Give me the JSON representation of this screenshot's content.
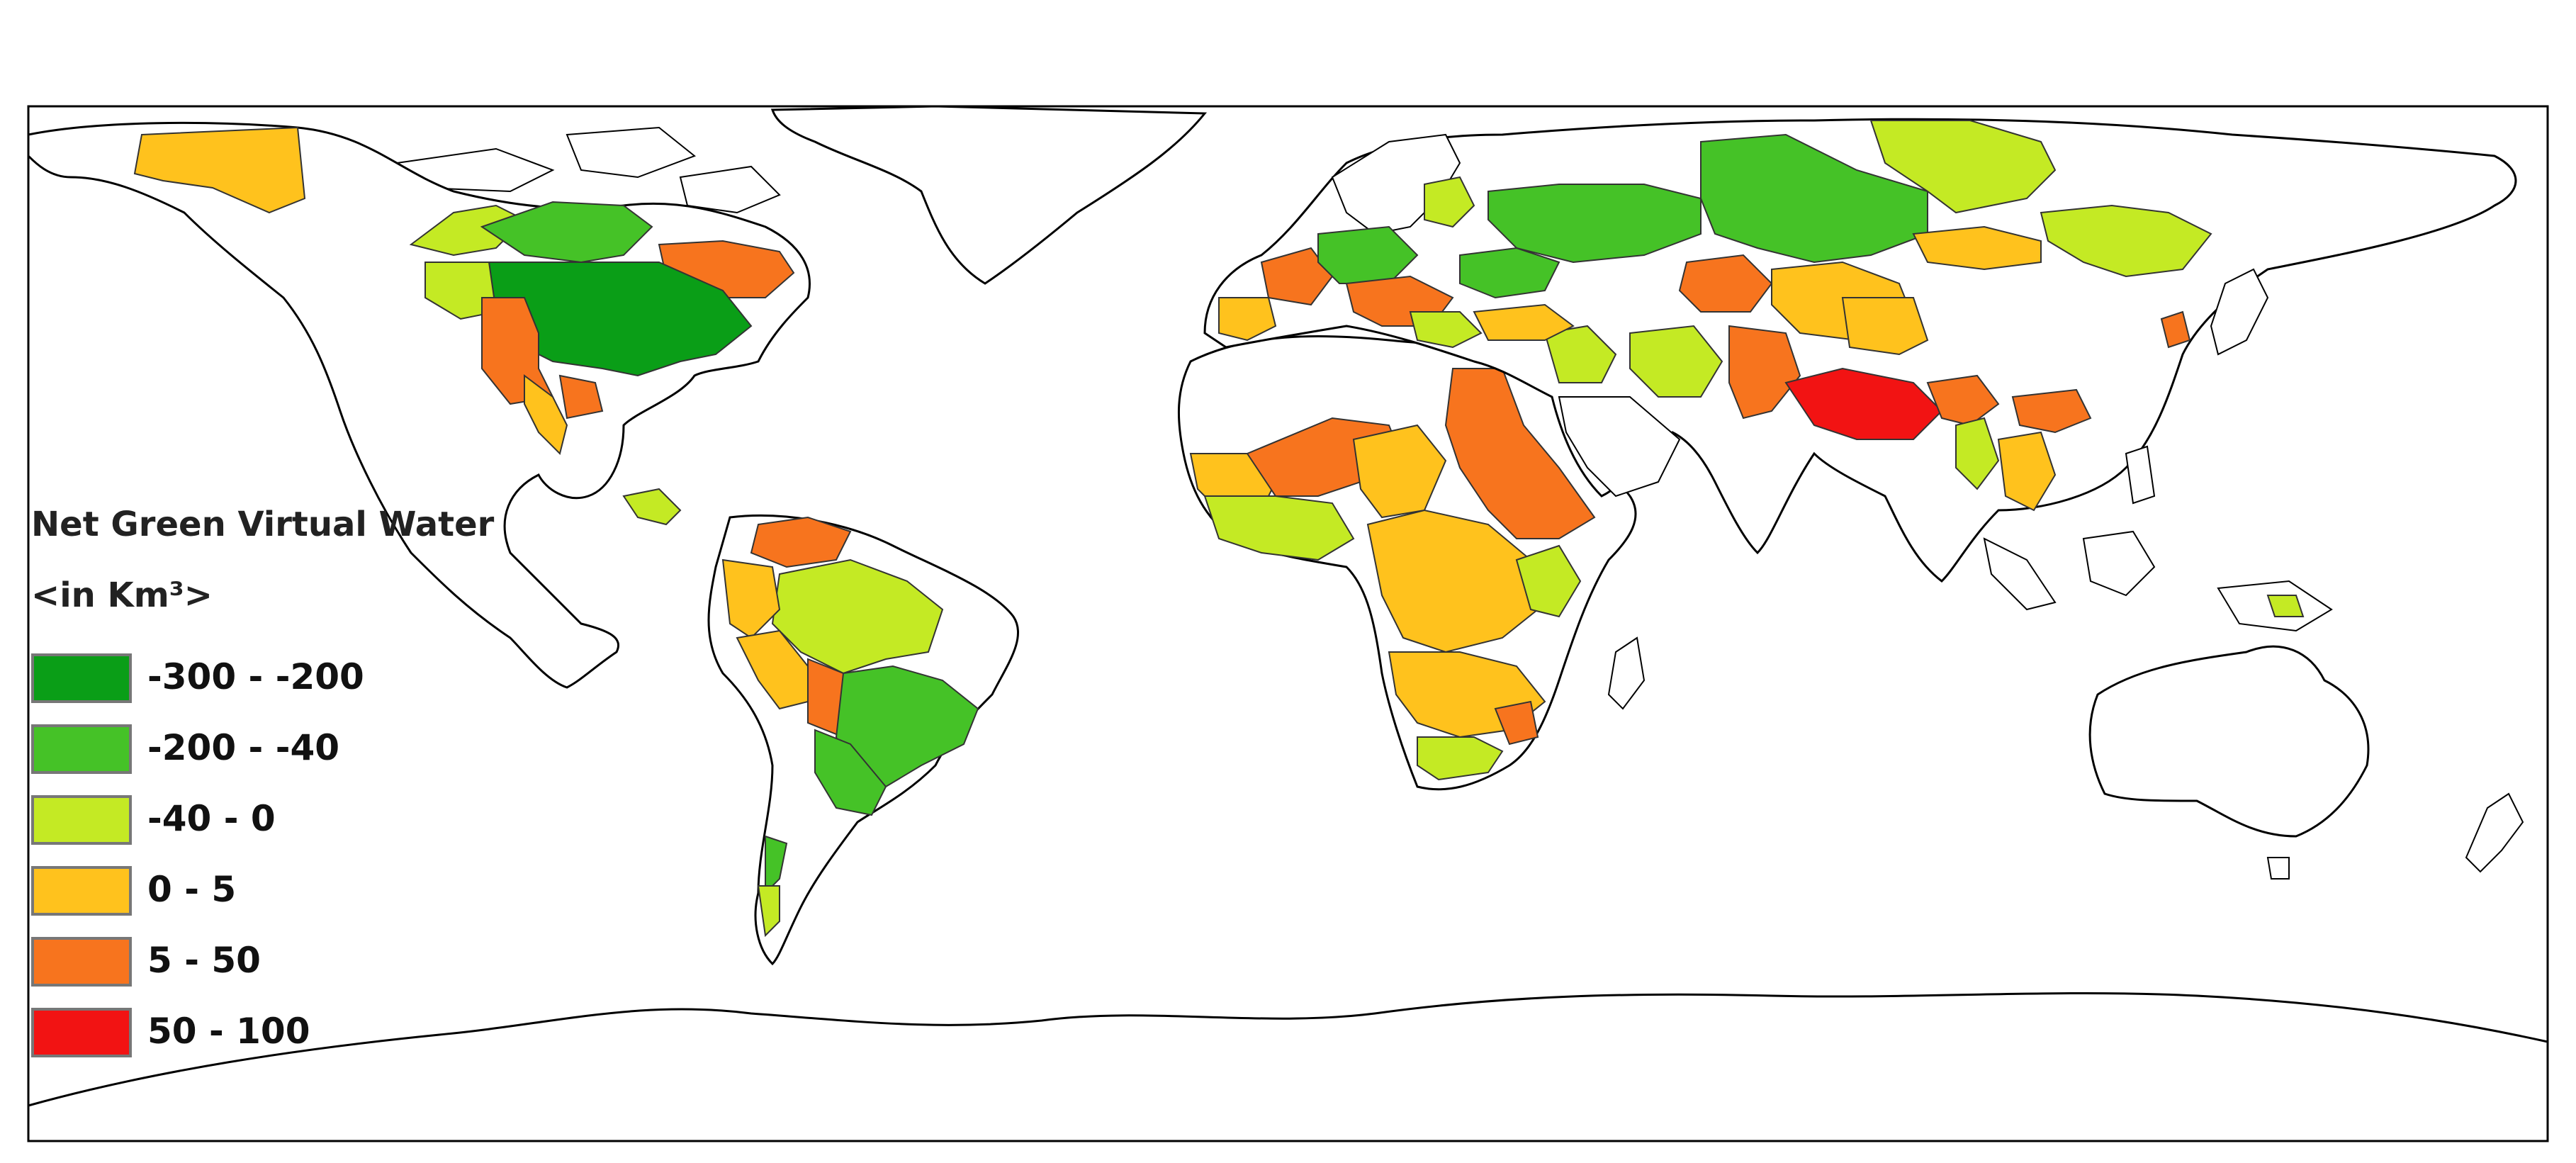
{
  "legend": {
    "title": "Net Green Virtual Water",
    "unit": "<in Km³>",
    "classes": [
      {
        "label": "-300 - -200",
        "color": "#0a9e17"
      },
      {
        "label": "-200 - -40",
        "color": "#45c227"
      },
      {
        "label": "-40 - 0",
        "color": "#c4ea24"
      },
      {
        "label": "0 - 5",
        "color": "#ffc21d"
      },
      {
        "label": "5 - 50",
        "color": "#f7741e"
      },
      {
        "label": "50 - 100",
        "color": "#f21313"
      }
    ]
  },
  "map": {
    "outline_color": "#000000",
    "ocean_color": "#ffffff"
  }
}
